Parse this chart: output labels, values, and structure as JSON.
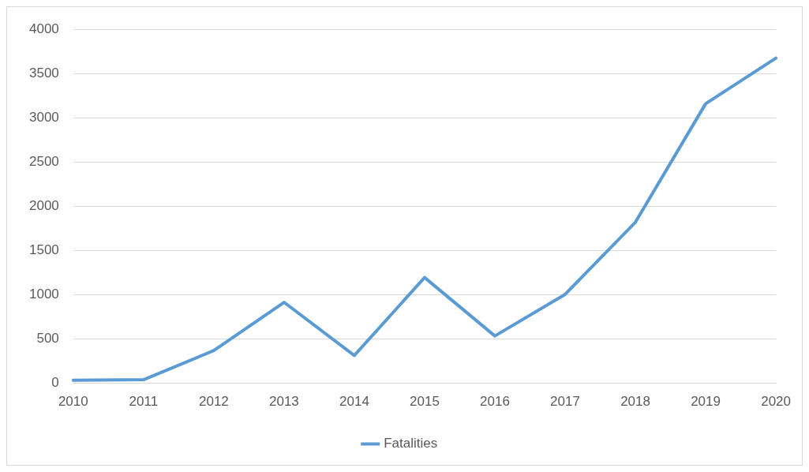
{
  "chart_data": {
    "type": "line",
    "categories": [
      "2010",
      "2011",
      "2012",
      "2013",
      "2014",
      "2015",
      "2016",
      "2017",
      "2018",
      "2019",
      "2020"
    ],
    "series": [
      {
        "name": "Fatalities",
        "color": "#5b9bd5",
        "values": [
          35,
          40,
          370,
          915,
          315,
          1195,
          535,
          1005,
          1820,
          3160,
          3675
        ]
      }
    ],
    "ylim": [
      0,
      4000
    ],
    "yticks": [
      0,
      500,
      1000,
      1500,
      2000,
      2500,
      3000,
      3500,
      4000
    ],
    "grid": "y",
    "legend": "bottom",
    "marker": "none",
    "line_style": "solid"
  }
}
